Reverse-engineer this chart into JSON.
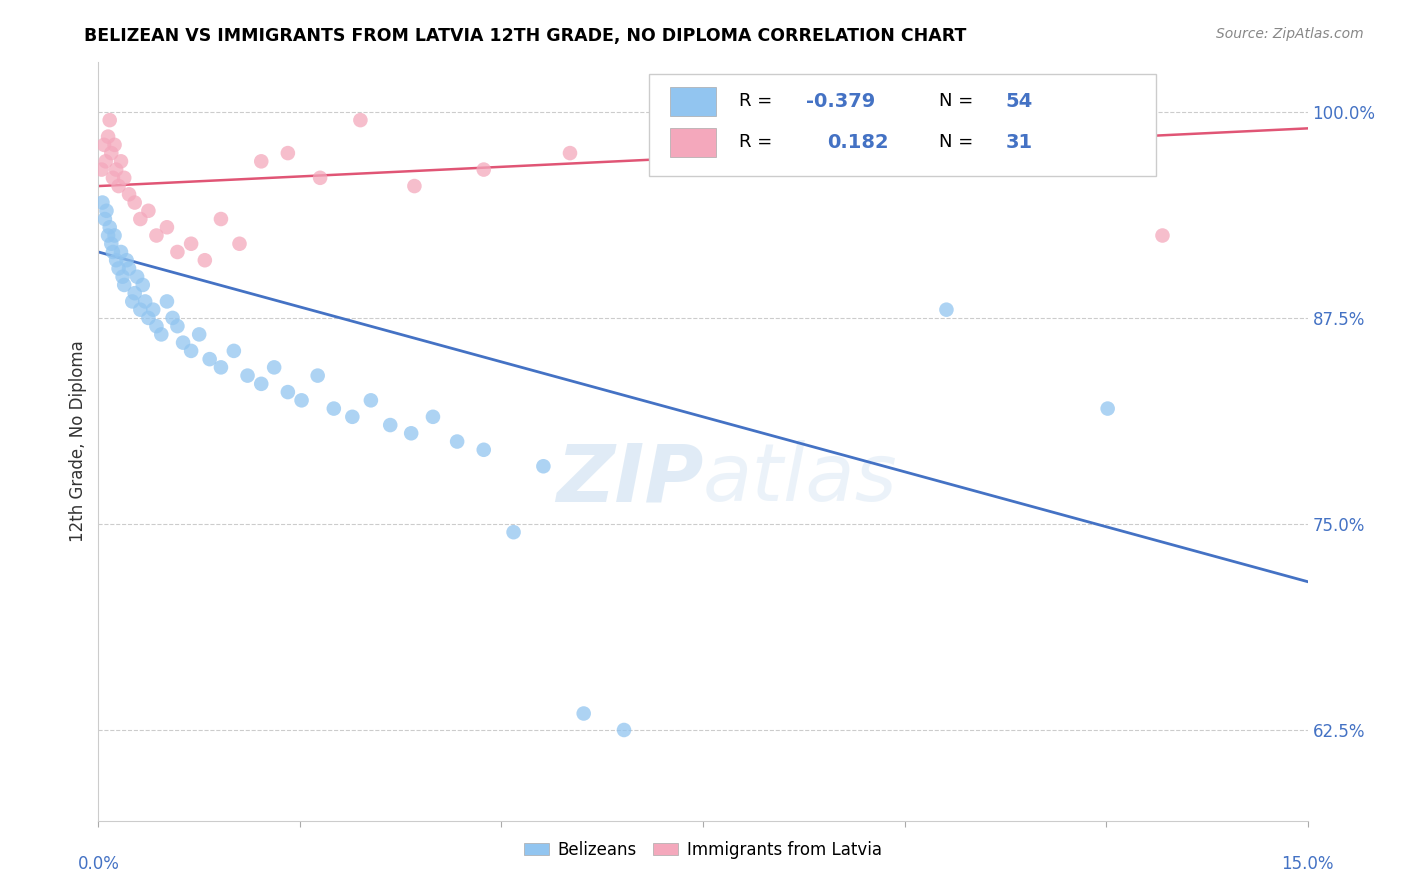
{
  "title": "BELIZEAN VS IMMIGRANTS FROM LATVIA 12TH GRADE, NO DIPLOMA CORRELATION CHART",
  "source": "Source: ZipAtlas.com",
  "ylabel": "12th Grade, No Diploma",
  "yticks": [
    62.5,
    75.0,
    87.5,
    100.0
  ],
  "ytick_labels": [
    "62.5%",
    "75.0%",
    "87.5%",
    "100.0%"
  ],
  "xmin": 0.0,
  "xmax": 15.0,
  "ymin": 57.0,
  "ymax": 103.0,
  "blue_R": "-0.379",
  "blue_N": "54",
  "pink_R": "0.182",
  "pink_N": "31",
  "blue_color": "#92C5F0",
  "pink_color": "#F4A8BC",
  "blue_line_color": "#4472C4",
  "pink_line_color": "#E05575",
  "legend_blue_label": "Belizeans",
  "legend_pink_label": "Immigrants from Latvia",
  "watermark_zip": "ZIP",
  "watermark_atlas": "atlas",
  "blue_scatter_x": [
    0.05,
    0.08,
    0.1,
    0.12,
    0.14,
    0.16,
    0.18,
    0.2,
    0.22,
    0.25,
    0.28,
    0.3,
    0.32,
    0.35,
    0.38,
    0.42,
    0.45,
    0.48,
    0.52,
    0.55,
    0.58,
    0.62,
    0.68,
    0.72,
    0.78,
    0.85,
    0.92,
    0.98,
    1.05,
    1.15,
    1.25,
    1.38,
    1.52,
    1.68,
    1.85,
    2.02,
    2.18,
    2.35,
    2.52,
    2.72,
    2.92,
    3.15,
    3.38,
    3.62,
    3.88,
    4.15,
    4.45,
    4.78,
    5.15,
    5.52,
    6.02,
    6.52,
    10.52,
    12.52
  ],
  "blue_scatter_y": [
    94.5,
    93.5,
    94.0,
    92.5,
    93.0,
    92.0,
    91.5,
    92.5,
    91.0,
    90.5,
    91.5,
    90.0,
    89.5,
    91.0,
    90.5,
    88.5,
    89.0,
    90.0,
    88.0,
    89.5,
    88.5,
    87.5,
    88.0,
    87.0,
    86.5,
    88.5,
    87.5,
    87.0,
    86.0,
    85.5,
    86.5,
    85.0,
    84.5,
    85.5,
    84.0,
    83.5,
    84.5,
    83.0,
    82.5,
    84.0,
    82.0,
    81.5,
    82.5,
    81.0,
    80.5,
    81.5,
    80.0,
    79.5,
    74.5,
    78.5,
    63.5,
    62.5,
    88.0,
    82.0
  ],
  "pink_scatter_x": [
    0.04,
    0.07,
    0.09,
    0.12,
    0.14,
    0.16,
    0.18,
    0.2,
    0.22,
    0.25,
    0.28,
    0.32,
    0.38,
    0.45,
    0.52,
    0.62,
    0.72,
    0.85,
    0.98,
    1.15,
    1.32,
    1.52,
    1.75,
    2.02,
    2.35,
    2.75,
    3.25,
    3.92,
    4.78,
    5.85,
    13.2
  ],
  "pink_scatter_y": [
    96.5,
    98.0,
    97.0,
    98.5,
    99.5,
    97.5,
    96.0,
    98.0,
    96.5,
    95.5,
    97.0,
    96.0,
    95.0,
    94.5,
    93.5,
    94.0,
    92.5,
    93.0,
    91.5,
    92.0,
    91.0,
    93.5,
    92.0,
    97.0,
    97.5,
    96.0,
    99.5,
    95.5,
    96.5,
    97.5,
    92.5
  ],
  "blue_trendline_x": [
    0.0,
    15.0
  ],
  "blue_trendline_y": [
    91.5,
    71.5
  ],
  "pink_trendline_x": [
    0.0,
    15.0
  ],
  "pink_trendline_y": [
    95.5,
    99.0
  ]
}
